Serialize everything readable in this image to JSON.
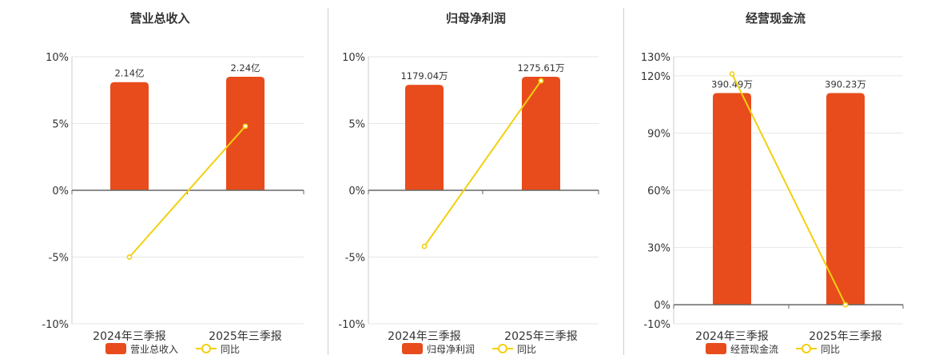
{
  "colors": {
    "bar": "#e84c1c",
    "line": "#f2d00f",
    "grid": "#e6e6e6",
    "axis": "#666666",
    "text": "#333333"
  },
  "chart_data": [
    {
      "type": "bar",
      "title": "营业总收入",
      "categories": [
        "2024年三季报",
        "2025年三季报"
      ],
      "yaxis": {
        "ylim": [
          -10,
          10
        ],
        "ticks": [
          -10,
          -5,
          0,
          5,
          10
        ],
        "tick_labels": [
          "-10%",
          "-5%",
          "0%",
          "5%",
          "10%"
        ]
      },
      "bar_series": {
        "name": "营业总收入",
        "labels": [
          "2.14亿",
          "2.24亿"
        ],
        "bar_level": [
          8.1,
          8.5
        ]
      },
      "line_series": {
        "name": "同比",
        "values": [
          -5.0,
          4.8
        ]
      },
      "grid": true,
      "legend": "bottom"
    },
    {
      "type": "bar",
      "title": "归母净利润",
      "categories": [
        "2024年三季报",
        "2025年三季报"
      ],
      "yaxis": {
        "ylim": [
          -10,
          10
        ],
        "ticks": [
          -10,
          -5,
          0,
          5,
          10
        ],
        "tick_labels": [
          "-10%",
          "-5%",
          "0%",
          "5%",
          "10%"
        ]
      },
      "bar_series": {
        "name": "归母净利润",
        "labels": [
          "1179.04万",
          "1275.61万"
        ],
        "bar_level": [
          7.9,
          8.5
        ]
      },
      "line_series": {
        "name": "同比",
        "values": [
          -4.2,
          8.2
        ]
      },
      "grid": true,
      "legend": "bottom"
    },
    {
      "type": "bar",
      "title": "经营现金流",
      "categories": [
        "2024年三季报",
        "2025年三季报"
      ],
      "yaxis": {
        "ylim": [
          -10,
          130
        ],
        "ticks": [
          -10,
          0,
          30,
          60,
          90,
          120,
          130
        ],
        "tick_labels": [
          "-10%",
          "0%",
          "30%",
          "60%",
          "90%",
          "120%",
          "130%"
        ]
      },
      "bar_series": {
        "name": "经营现金流",
        "labels": [
          "390.49万",
          "390.23万"
        ],
        "bar_level": [
          111,
          111
        ]
      },
      "line_series": {
        "name": "同比",
        "values": [
          121,
          0
        ]
      },
      "grid": true,
      "legend": "bottom"
    }
  ]
}
